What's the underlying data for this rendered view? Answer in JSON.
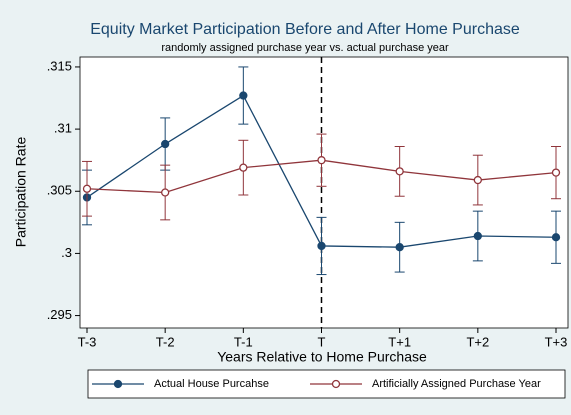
{
  "chart_data": {
    "type": "line",
    "title": "Equity Market Participation Before and After Home Purchase",
    "subtitle": "randomly assigned purchase year vs. actual purchase year",
    "x_label": "Years Relative to Home Purchase",
    "y_label": "Participation Rate",
    "categories": [
      "T-3",
      "T-2",
      "T-1",
      "T",
      "T+1",
      "T+2",
      "T+3"
    ],
    "series": [
      {
        "name": "Actual House Purcahse",
        "color": "#1a476f",
        "marker": "filled",
        "values": [
          0.3045,
          0.3088,
          0.3127,
          0.3006,
          0.3005,
          0.3014,
          0.3013
        ],
        "errors": [
          0.0022,
          0.0021,
          0.0023,
          0.0023,
          0.002,
          0.002,
          0.0021
        ]
      },
      {
        "name": "Artificially Assigned Purchase Year",
        "color": "#90353b",
        "marker": "hollow",
        "values": [
          0.3052,
          0.3049,
          0.3069,
          0.3075,
          0.3066,
          0.3059,
          0.3065
        ],
        "errors": [
          0.0022,
          0.0022,
          0.0022,
          0.0021,
          0.002,
          0.002,
          0.0021
        ]
      }
    ],
    "ylim": [
      0.294,
      0.3158
    ],
    "yticks": [
      {
        "value": 0.295,
        "label": ".295"
      },
      {
        "value": 0.3,
        "label": ".3"
      },
      {
        "value": 0.305,
        "label": ".305"
      },
      {
        "value": 0.31,
        "label": ".31"
      },
      {
        "value": 0.315,
        "label": ".315"
      }
    ],
    "vline": "T",
    "legend": "bottom"
  }
}
